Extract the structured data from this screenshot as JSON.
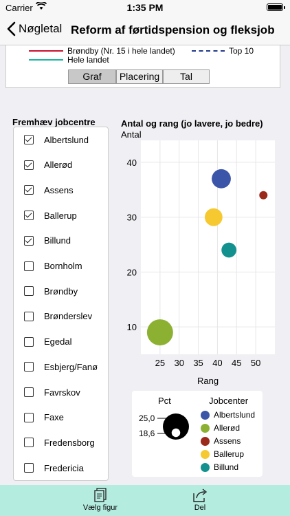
{
  "status_bar": {
    "carrier": "Carrier",
    "time": "1:35 PM"
  },
  "nav": {
    "back_label": "Nøgletal",
    "title": "Reform af førtidspension og fleksjob"
  },
  "top_legend": {
    "line1": "Brøndby (Nr. 15 i hele landet)",
    "line1_color": "#c8102e",
    "line2": "Hele landet",
    "line2_color": "#1bb5a5",
    "line3": "Top 10",
    "line3_color": "#1f3a8a"
  },
  "segments": [
    "Graf",
    "Placering",
    "Tal"
  ],
  "filter": {
    "title": "Fremhæv jobcentre",
    "items": [
      {
        "label": "Albertslund",
        "checked": true
      },
      {
        "label": "Allerød",
        "checked": true
      },
      {
        "label": "Assens",
        "checked": true
      },
      {
        "label": "Ballerup",
        "checked": true
      },
      {
        "label": "Billund",
        "checked": true
      },
      {
        "label": "Bornholm",
        "checked": false
      },
      {
        "label": "Brøndby",
        "checked": false
      },
      {
        "label": "Brønderslev",
        "checked": false
      },
      {
        "label": "Egedal",
        "checked": false
      },
      {
        "label": "Esbjerg/Fanø",
        "checked": false
      },
      {
        "label": "Favrskov",
        "checked": false
      },
      {
        "label": "Faxe",
        "checked": false
      },
      {
        "label": "Fredensborg",
        "checked": false
      },
      {
        "label": "Fredericia",
        "checked": false
      }
    ]
  },
  "chart": {
    "title": "Antal og rang (jo lavere, jo bedre)",
    "ylabel": "Antal",
    "xlabel": "Rang",
    "size_legend_title": "Pct",
    "size_legend_values": [
      "25,0",
      "18,6"
    ],
    "color_legend_title": "Jobcenter"
  },
  "chart_data": {
    "type": "scatter",
    "title": "Antal og rang (jo lavere, jo bedre)",
    "xlabel": "Rang",
    "ylabel": "Antal",
    "xlim": [
      20,
      55
    ],
    "ylim": [
      5,
      44
    ],
    "x_ticks": [
      25,
      30,
      35,
      40,
      45,
      50
    ],
    "y_ticks": [
      10,
      20,
      30,
      40
    ],
    "grid": true,
    "series": [
      {
        "name": "Albertslund",
        "color": "#3b55a8",
        "x": 41,
        "y": 37,
        "size": 22.5
      },
      {
        "name": "Allerød",
        "color": "#8cb132",
        "x": 25,
        "y": 9,
        "size": 25.0
      },
      {
        "name": "Assens",
        "color": "#9b2a1a",
        "x": 52,
        "y": 34,
        "size": 18.6
      },
      {
        "name": "Ballerup",
        "color": "#f6c930",
        "x": 39,
        "y": 30,
        "size": 22.0
      },
      {
        "name": "Billund",
        "color": "#13918f",
        "x": 43,
        "y": 24,
        "size": 21.0
      }
    ]
  },
  "tabs": [
    {
      "label": "Vælg figur"
    },
    {
      "label": "Del"
    }
  ]
}
